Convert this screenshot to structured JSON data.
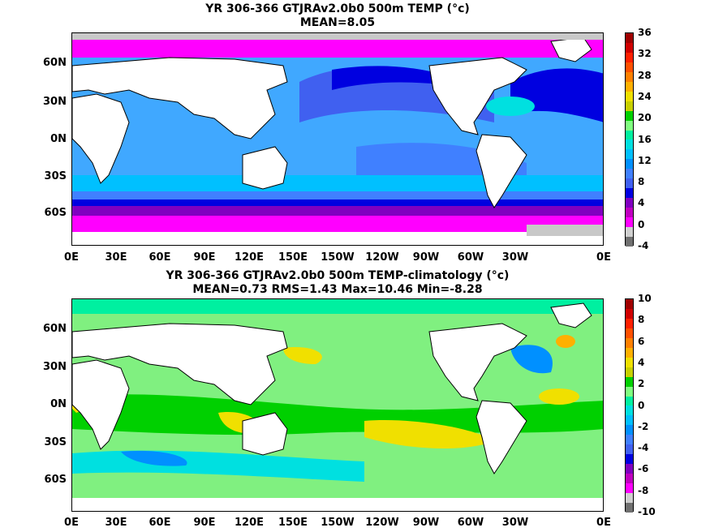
{
  "panel1": {
    "title_line1": "YR 306-366 GTJRAv2.0b0 500m TEMP (°c)",
    "title_line2": "MEAN=8.05",
    "colorbar_labels": [
      "36",
      "32",
      "28",
      "24",
      "20",
      "16",
      "12",
      "8",
      "4",
      "0",
      "-4"
    ],
    "colorbar_colors": [
      "#a00000",
      "#d00000",
      "#ff2000",
      "#ff5000",
      "#ff8000",
      "#ffb000",
      "#f0e000",
      "#c8d000",
      "#00d000",
      "#80ff80",
      "#00f0a0",
      "#00e0e0",
      "#00c0ff",
      "#0090ff",
      "#4080ff",
      "#4060f0",
      "#0000e0",
      "#8000c0",
      "#c000c0",
      "#ff00ff",
      "#d0d0d0",
      "#707070"
    ]
  },
  "panel2": {
    "title_line1": "YR 306-366 GTJRAv2.0b0 500m TEMP-climatology (°c)",
    "title_line2": "MEAN=0.73   RMS=1.43   Max=10.46   Min=-8.28",
    "colorbar_labels": [
      "10",
      "8",
      "6",
      "4",
      "2",
      "0",
      "-2",
      "-4",
      "-6",
      "-8",
      "-10"
    ],
    "colorbar_colors": [
      "#a00000",
      "#d00000",
      "#ff2000",
      "#ff5000",
      "#ff8000",
      "#ffb000",
      "#f0e000",
      "#c8d000",
      "#00d000",
      "#80ff80",
      "#00f0a0",
      "#00e0e0",
      "#00c0ff",
      "#0090ff",
      "#4080ff",
      "#4060f0",
      "#0000e0",
      "#8000c0",
      "#c000c0",
      "#ff00ff",
      "#d0d0d0",
      "#707070"
    ]
  },
  "lat_labels": [
    "60N",
    "30N",
    "0N",
    "30S",
    "60S"
  ],
  "lon_labels": [
    "0E",
    "30E",
    "60E",
    "90E",
    "120E",
    "150E",
    "150W",
    "120W",
    "90W",
    "60W",
    "30W",
    "0E"
  ],
  "map_colors": {
    "land": "#ffffff",
    "coast": "#000000",
    "ice": "#c8c8c8",
    "panel1_ocean_base": "#40a8ff",
    "panel2_ocean_base": "#80f080"
  }
}
